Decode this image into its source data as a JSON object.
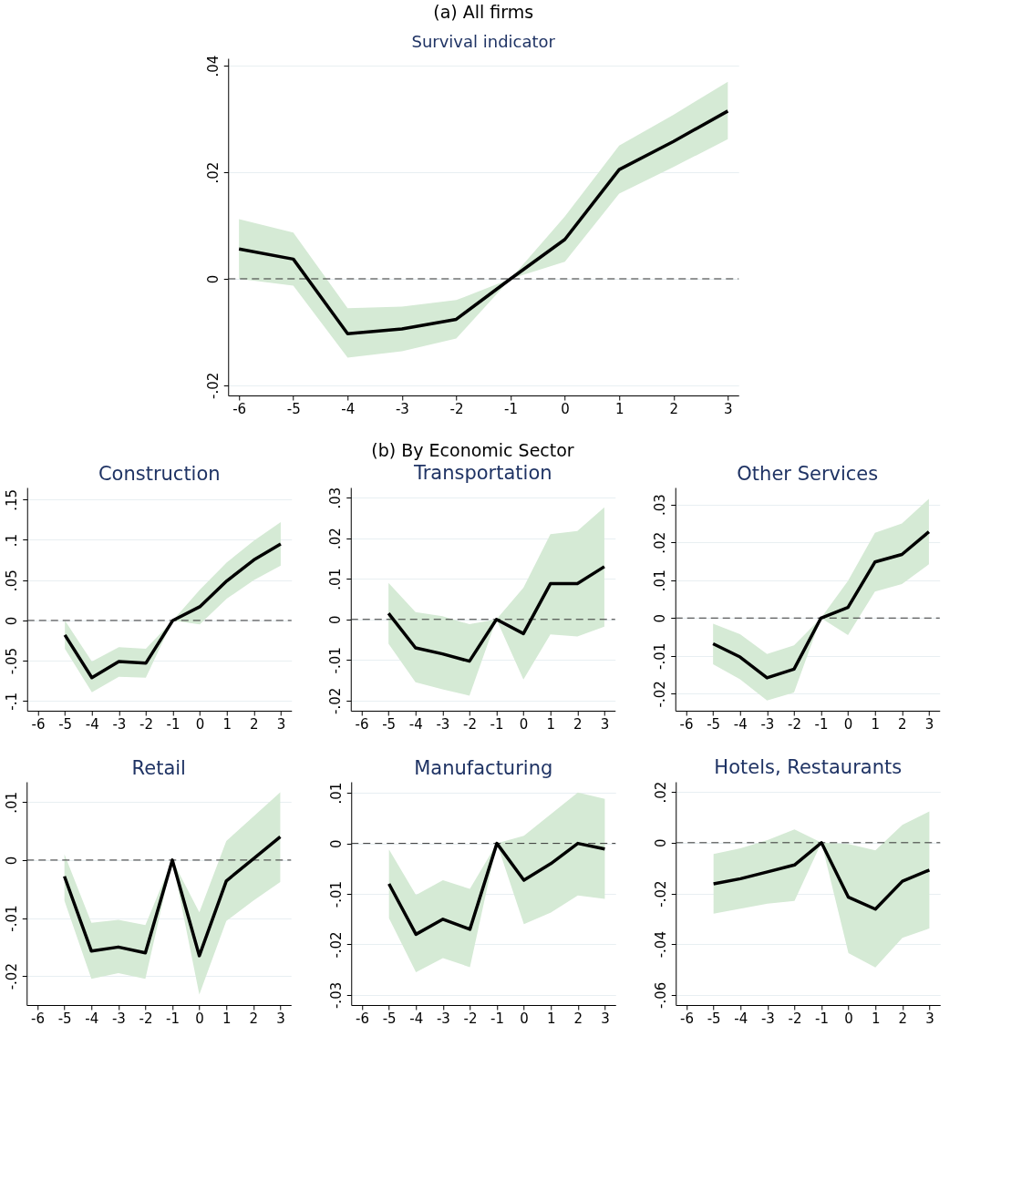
{
  "chart_data": [
    {
      "type": "line",
      "title": "(a) All firms",
      "subtitle": "Survival indicator",
      "x": [
        -6,
        -5,
        -4,
        -3,
        -2,
        -1,
        0,
        1,
        2,
        3
      ],
      "xlim": [
        -6.2,
        3.2
      ],
      "xticks": [
        -6,
        -5,
        -4,
        -3,
        -2,
        -1,
        0,
        1,
        2,
        3
      ],
      "ylim": [
        -0.0219,
        0.0414
      ],
      "yticks": [
        {
          "value": -0.02,
          "label": "-.02"
        },
        0,
        {
          "value": 0.02,
          "label": ".02"
        },
        {
          "value": 0.04,
          "label": ".04"
        }
      ],
      "grid": "y",
      "line_style": "solid",
      "ref_lines": [
        {
          "axis": "y",
          "value": 0,
          "line_style": "dashed"
        }
      ],
      "series": [
        {
          "color": "#000000",
          "values": [
            0.0056,
            0.0037,
            -0.0103,
            -0.0094,
            -0.0076,
            0,
            0.0074,
            0.0205,
            0.0258,
            0.0315
          ],
          "lower": [
            0.0,
            -0.0013,
            -0.0148,
            -0.0136,
            -0.0112,
            0,
            0.0032,
            0.016,
            0.021,
            0.0262
          ],
          "upper": [
            0.0112,
            0.0087,
            -0.0055,
            -0.0052,
            -0.004,
            0,
            0.0117,
            0.025,
            0.0308,
            0.037
          ]
        }
      ]
    },
    {
      "type": "line",
      "title": "Construction",
      "annotations": [
        "(b) By Economic Sector"
      ],
      "x": [
        -5,
        -4,
        -3,
        -2,
        -1,
        0,
        1,
        2,
        3
      ],
      "xlim": [
        -6.4,
        3.4
      ],
      "xticks": [
        -6,
        -5,
        -4,
        -3,
        -2,
        -1,
        0,
        1,
        2,
        3
      ],
      "ylim": [
        -0.112,
        0.165
      ],
      "yticks": [
        {
          "value": -0.1,
          "label": "-.1"
        },
        {
          "value": -0.05,
          "label": "-.05"
        },
        0,
        {
          "value": 0.05,
          "label": ".05"
        },
        {
          "value": 0.1,
          "label": ".1"
        },
        {
          "value": 0.15,
          "label": ".15"
        }
      ],
      "grid": "y",
      "line_style": "solid",
      "ref_lines": [
        {
          "axis": "y",
          "value": 0,
          "line_style": "dashed"
        }
      ],
      "series": [
        {
          "color": "#000000",
          "values": [
            -0.018,
            -0.071,
            -0.051,
            -0.053,
            0,
            0.017,
            0.049,
            0.075,
            0.095
          ],
          "lower": [
            -0.035,
            -0.089,
            -0.07,
            -0.071,
            0,
            -0.005,
            0.027,
            0.05,
            0.068
          ],
          "upper": [
            0,
            -0.051,
            -0.033,
            -0.035,
            0,
            0.038,
            0.072,
            0.099,
            0.122
          ]
        }
      ]
    },
    {
      "type": "line",
      "title": "Transportation",
      "x": [
        -5,
        -4,
        -3,
        -2,
        -1,
        0,
        1,
        2,
        3
      ],
      "xlim": [
        -6.4,
        3.4
      ],
      "xticks": [
        -6,
        -5,
        -4,
        -3,
        -2,
        -1,
        0,
        1,
        2,
        3
      ],
      "ylim": [
        -0.0225,
        0.0325
      ],
      "yticks": [
        {
          "value": -0.02,
          "label": "-.02"
        },
        {
          "value": -0.01,
          "label": "-.01"
        },
        0,
        {
          "value": 0.01,
          "label": ".01"
        },
        {
          "value": 0.02,
          "label": ".02"
        },
        {
          "value": 0.03,
          "label": ".03"
        }
      ],
      "grid": "y",
      "line_style": "solid",
      "ref_lines": [
        {
          "axis": "y",
          "value": 0,
          "line_style": "dashed"
        }
      ],
      "series": [
        {
          "color": "#000000",
          "values": [
            0.0015,
            -0.007,
            -0.0085,
            -0.0103,
            0,
            -0.0035,
            0.0088,
            0.0088,
            0.013
          ],
          "lower": [
            -0.006,
            -0.0155,
            -0.0172,
            -0.0188,
            0,
            -0.0148,
            -0.0037,
            -0.0042,
            -0.0018
          ],
          "upper": [
            0.009,
            0.0018,
            0.0008,
            -0.0012,
            0,
            0.0078,
            0.021,
            0.0218,
            0.0276
          ]
        }
      ]
    },
    {
      "type": "line",
      "title": "Other Services",
      "x": [
        -5,
        -4,
        -3,
        -2,
        -1,
        0,
        1,
        2,
        3
      ],
      "xlim": [
        -6.4,
        3.4
      ],
      "xticks": [
        -6,
        -5,
        -4,
        -3,
        -2,
        -1,
        0,
        1,
        2,
        3
      ],
      "ylim": [
        -0.0245,
        0.0345
      ],
      "yticks": [
        {
          "value": -0.02,
          "label": "-.02"
        },
        {
          "value": -0.01,
          "label": "-.01"
        },
        0,
        {
          "value": 0.01,
          "label": ".01"
        },
        {
          "value": 0.02,
          "label": ".02"
        },
        {
          "value": 0.03,
          "label": ".03"
        }
      ],
      "grid": "y",
      "line_style": "solid",
      "ref_lines": [
        {
          "axis": "y",
          "value": 0,
          "line_style": "dashed"
        }
      ],
      "series": [
        {
          "color": "#000000",
          "values": [
            -0.0068,
            -0.0103,
            -0.0158,
            -0.0135,
            0,
            0.0028,
            0.0148,
            0.0168,
            0.0228
          ],
          "lower": [
            -0.0122,
            -0.0162,
            -0.0218,
            -0.0197,
            0,
            -0.0045,
            0.007,
            0.009,
            0.0142
          ],
          "upper": [
            -0.0015,
            -0.0043,
            -0.0095,
            -0.0072,
            0,
            0.0098,
            0.0225,
            0.025,
            0.0315
          ]
        }
      ]
    },
    {
      "type": "line",
      "title": "Retail",
      "x": [
        -5,
        -4,
        -3,
        -2,
        -1,
        0,
        1,
        2,
        3
      ],
      "xlim": [
        -6.4,
        3.4
      ],
      "xticks": [
        -6,
        -5,
        -4,
        -3,
        -2,
        -1,
        0,
        1,
        2,
        3
      ],
      "ylim": [
        -0.025,
        0.0135
      ],
      "yticks": [
        {
          "value": -0.02,
          "label": "-.02"
        },
        {
          "value": -0.01,
          "label": "-.01"
        },
        0,
        {
          "value": 0.01,
          "label": ".01"
        }
      ],
      "grid": "y",
      "line_style": "solid",
      "ref_lines": [
        {
          "axis": "y",
          "value": 0,
          "line_style": "dashed"
        }
      ],
      "series": [
        {
          "color": "#000000",
          "values": [
            -0.0028,
            -0.0157,
            -0.015,
            -0.016,
            0,
            -0.0165,
            -0.0036,
            0.0002,
            0.004
          ],
          "lower": [
            -0.007,
            -0.0205,
            -0.0195,
            -0.0205,
            0,
            -0.0232,
            -0.0105,
            -0.007,
            -0.0038
          ],
          "upper": [
            0.001,
            -0.0108,
            -0.0103,
            -0.0112,
            0,
            -0.009,
            0.0033,
            0.0075,
            0.0117
          ]
        }
      ]
    },
    {
      "type": "line",
      "title": "Manufacturing",
      "x": [
        -5,
        -4,
        -3,
        -2,
        -1,
        0,
        1,
        2,
        3
      ],
      "xlim": [
        -6.4,
        3.4
      ],
      "xticks": [
        -6,
        -5,
        -4,
        -3,
        -2,
        -1,
        0,
        1,
        2,
        3
      ],
      "ylim": [
        -0.032,
        0.0122
      ],
      "yticks": [
        {
          "value": -0.03,
          "label": "-.03"
        },
        {
          "value": -0.02,
          "label": "-.02"
        },
        {
          "value": -0.01,
          "label": "-.01"
        },
        0,
        {
          "value": 0.01,
          "label": ".01"
        }
      ],
      "grid": "y",
      "line_style": "solid",
      "ref_lines": [
        {
          "axis": "y",
          "value": 0,
          "line_style": "dashed"
        }
      ],
      "series": [
        {
          "color": "#000000",
          "values": [
            -0.008,
            -0.018,
            -0.015,
            -0.017,
            0,
            -0.0073,
            -0.004,
            0,
            -0.0011
          ],
          "lower": [
            -0.0148,
            -0.0255,
            -0.0227,
            -0.0245,
            0,
            -0.016,
            -0.0137,
            -0.0103,
            -0.011
          ],
          "upper": [
            -0.0012,
            -0.0102,
            -0.0073,
            -0.009,
            0,
            0.0015,
            0.0058,
            0.0101,
            0.0088
          ]
        }
      ]
    },
    {
      "type": "line",
      "title": "Hotels, Restaurants",
      "x": [
        -5,
        -4,
        -3,
        -2,
        -1,
        0,
        1,
        2,
        3
      ],
      "xlim": [
        -6.4,
        3.4
      ],
      "xticks": [
        -6,
        -5,
        -4,
        -3,
        -2,
        -1,
        0,
        1,
        2,
        3
      ],
      "ylim": [
        -0.064,
        0.024
      ],
      "yticks": [
        {
          "value": -0.06,
          "label": "-.06"
        },
        {
          "value": -0.04,
          "label": "-.04"
        },
        {
          "value": -0.02,
          "label": "-.02"
        },
        0,
        {
          "value": 0.02,
          "label": ".02"
        }
      ],
      "grid": "y",
      "line_style": "solid",
      "ref_lines": [
        {
          "axis": "y",
          "value": 0,
          "line_style": "dashed"
        }
      ],
      "series": [
        {
          "color": "#000000",
          "values": [
            -0.0162,
            -0.0142,
            -0.0115,
            -0.0088,
            0,
            -0.0215,
            -0.0262,
            -0.0152,
            -0.0108
          ],
          "lower": [
            -0.028,
            -0.026,
            -0.024,
            -0.023,
            0,
            -0.0435,
            -0.0492,
            -0.0375,
            -0.0338
          ],
          "upper": [
            -0.0045,
            -0.0022,
            0.001,
            0.0052,
            0,
            -0.0005,
            -0.003,
            0.007,
            0.0123
          ]
        }
      ]
    }
  ]
}
